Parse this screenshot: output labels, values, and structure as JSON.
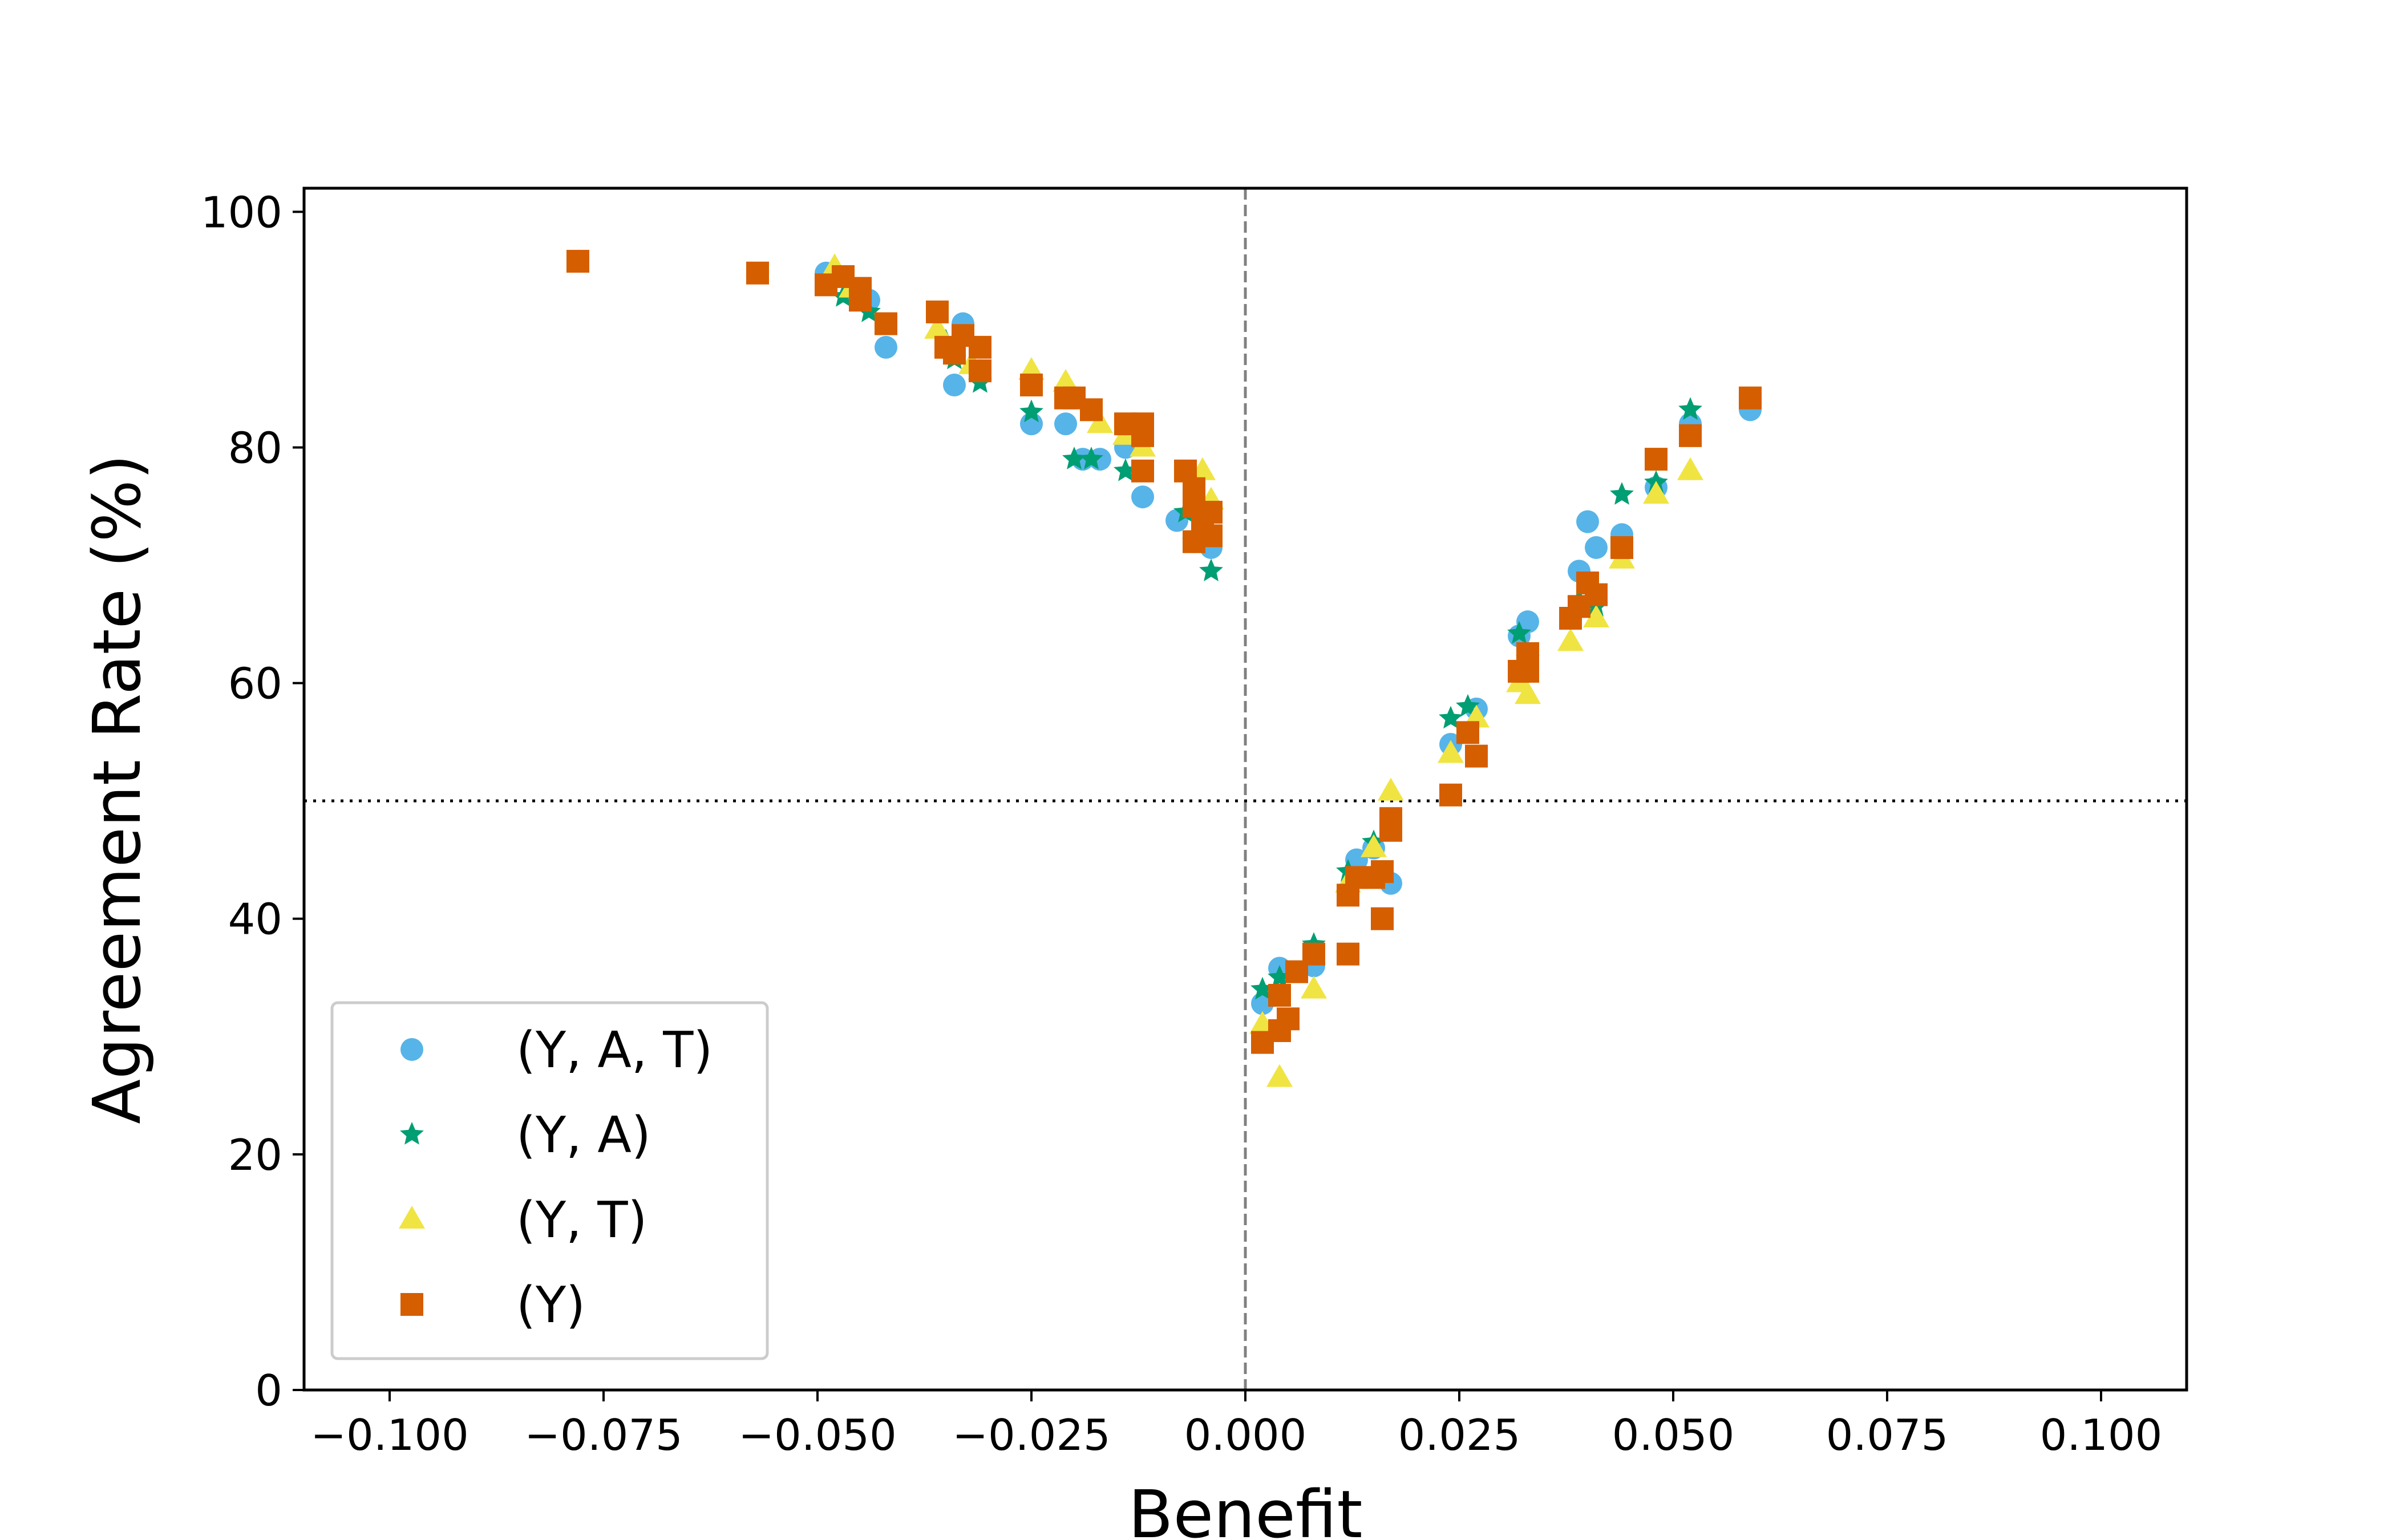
{
  "chart_data": {
    "type": "scatter",
    "title": "",
    "xlabel": "Benefit",
    "ylabel": "Agreement Rate (%)",
    "xlim": [
      -0.11,
      0.11
    ],
    "ylim": [
      0,
      102
    ],
    "xticks": [
      -0.1,
      -0.075,
      -0.05,
      -0.025,
      0.0,
      0.025,
      0.05,
      0.075,
      0.1
    ],
    "xtick_labels": [
      "−0.100",
      "−0.075",
      "−0.050",
      "−0.025",
      "0.000",
      "0.025",
      "0.050",
      "0.075",
      "0.100"
    ],
    "yticks": [
      0,
      20,
      40,
      60,
      80,
      100
    ],
    "ytick_labels": [
      "0",
      "20",
      "40",
      "60",
      "80",
      "100"
    ],
    "grid": false,
    "legend_position": "bottom-left",
    "reference_lines": {
      "vertical_x": 0.0,
      "vertical_style": "dashed",
      "horizontal_y": 50,
      "horizontal_style": "dotted"
    },
    "series": [
      {
        "name": "(Y, A, T)",
        "marker": "circle",
        "color": "#56B4E9",
        "points": [
          [
            -0.049,
            94.8
          ],
          [
            -0.044,
            92.5
          ],
          [
            -0.042,
            88.5
          ],
          [
            -0.034,
            85.3
          ],
          [
            -0.033,
            90.5
          ],
          [
            -0.031,
            86.5
          ],
          [
            -0.025,
            82.0
          ],
          [
            -0.021,
            82.0
          ],
          [
            -0.019,
            79.0
          ],
          [
            -0.017,
            79.0
          ],
          [
            -0.014,
            80.0
          ],
          [
            -0.012,
            75.8
          ],
          [
            -0.008,
            73.8
          ],
          [
            -0.006,
            72.0
          ],
          [
            -0.004,
            71.5
          ],
          [
            0.002,
            32.8
          ],
          [
            0.004,
            35.8
          ],
          [
            0.008,
            36.0
          ],
          [
            0.013,
            45.0
          ],
          [
            0.015,
            46.0
          ],
          [
            0.017,
            43.0
          ],
          [
            0.024,
            54.8
          ],
          [
            0.027,
            57.8
          ],
          [
            0.032,
            64.0
          ],
          [
            0.033,
            65.2
          ],
          [
            0.039,
            69.5
          ],
          [
            0.04,
            73.7
          ],
          [
            0.041,
            71.5
          ],
          [
            0.044,
            72.6
          ],
          [
            0.048,
            76.6
          ],
          [
            0.052,
            82.0
          ],
          [
            0.059,
            83.2
          ]
        ]
      },
      {
        "name": "(Y, A)",
        "marker": "star",
        "color": "#009E73",
        "points": [
          [
            -0.047,
            92.8
          ],
          [
            -0.044,
            91.5
          ],
          [
            -0.035,
            89.0
          ],
          [
            -0.034,
            87.5
          ],
          [
            -0.031,
            85.5
          ],
          [
            -0.025,
            83.0
          ],
          [
            -0.02,
            79.0
          ],
          [
            -0.018,
            79.0
          ],
          [
            -0.014,
            78.0
          ],
          [
            -0.007,
            74.5
          ],
          [
            -0.006,
            72.0
          ],
          [
            -0.004,
            69.5
          ],
          [
            0.002,
            34.0
          ],
          [
            0.004,
            35.0
          ],
          [
            0.008,
            37.8
          ],
          [
            0.012,
            44.0
          ],
          [
            0.015,
            46.5
          ],
          [
            0.024,
            57.0
          ],
          [
            0.026,
            58.0
          ],
          [
            0.032,
            64.2
          ],
          [
            0.033,
            62.0
          ],
          [
            0.039,
            67.0
          ],
          [
            0.041,
            66.5
          ],
          [
            0.044,
            76.0
          ],
          [
            0.048,
            77.0
          ],
          [
            0.052,
            83.2
          ]
        ]
      },
      {
        "name": "(Y, T)",
        "marker": "triangle",
        "color": "#F0E442",
        "points": [
          [
            -0.048,
            95.3
          ],
          [
            -0.046,
            93.5
          ],
          [
            -0.036,
            90.0
          ],
          [
            -0.032,
            87.0
          ],
          [
            -0.025,
            86.5
          ],
          [
            -0.021,
            85.5
          ],
          [
            -0.017,
            82.0
          ],
          [
            -0.014,
            81.0
          ],
          [
            -0.012,
            80.0
          ],
          [
            -0.005,
            78.0
          ],
          [
            -0.004,
            75.5
          ],
          [
            0.002,
            31.0
          ],
          [
            0.004,
            26.5
          ],
          [
            0.008,
            34.0
          ],
          [
            0.012,
            43.0
          ],
          [
            0.015,
            46.0
          ],
          [
            0.017,
            50.8
          ],
          [
            0.024,
            54.0
          ],
          [
            0.027,
            57.0
          ],
          [
            0.032,
            60.0
          ],
          [
            0.033,
            59.0
          ],
          [
            0.038,
            63.5
          ],
          [
            0.041,
            65.5
          ],
          [
            0.044,
            70.5
          ],
          [
            0.048,
            76.0
          ],
          [
            0.052,
            78.0
          ]
        ]
      },
      {
        "name": "(Y)",
        "marker": "square",
        "color": "#D55E00",
        "points": [
          [
            -0.078,
            95.8
          ],
          [
            -0.057,
            94.8
          ],
          [
            -0.049,
            93.8
          ],
          [
            -0.047,
            94.5
          ],
          [
            -0.045,
            93.5
          ],
          [
            -0.045,
            92.5
          ],
          [
            -0.042,
            90.5
          ],
          [
            -0.036,
            91.5
          ],
          [
            -0.035,
            88.5
          ],
          [
            -0.034,
            88.0
          ],
          [
            -0.033,
            89.5
          ],
          [
            -0.031,
            88.5
          ],
          [
            -0.031,
            86.5
          ],
          [
            -0.025,
            85.3
          ],
          [
            -0.021,
            84.2
          ],
          [
            -0.02,
            84.2
          ],
          [
            -0.018,
            83.2
          ],
          [
            -0.014,
            82.0
          ],
          [
            -0.012,
            82.0
          ],
          [
            -0.012,
            81.0
          ],
          [
            -0.012,
            78.0
          ],
          [
            -0.007,
            78.0
          ],
          [
            -0.006,
            76.5
          ],
          [
            -0.006,
            75.0
          ],
          [
            -0.005,
            73.5
          ],
          [
            -0.004,
            74.5
          ],
          [
            -0.004,
            72.5
          ],
          [
            -0.006,
            72.0
          ],
          [
            0.002,
            29.5
          ],
          [
            0.004,
            30.5
          ],
          [
            0.004,
            33.5
          ],
          [
            0.005,
            31.5
          ],
          [
            0.006,
            35.5
          ],
          [
            0.008,
            37.0
          ],
          [
            0.012,
            37.0
          ],
          [
            0.012,
            42.0
          ],
          [
            0.013,
            43.5
          ],
          [
            0.015,
            43.5
          ],
          [
            0.016,
            40.0
          ],
          [
            0.016,
            44.0
          ],
          [
            0.017,
            47.5
          ],
          [
            0.017,
            48.5
          ],
          [
            0.024,
            50.5
          ],
          [
            0.026,
            55.8
          ],
          [
            0.027,
            53.8
          ],
          [
            0.032,
            61.0
          ],
          [
            0.033,
            61.0
          ],
          [
            0.033,
            62.5
          ],
          [
            0.038,
            65.5
          ],
          [
            0.039,
            66.5
          ],
          [
            0.04,
            68.5
          ],
          [
            0.041,
            67.5
          ],
          [
            0.044,
            71.5
          ],
          [
            0.048,
            79.0
          ],
          [
            0.052,
            81.0
          ],
          [
            0.059,
            84.2
          ]
        ]
      }
    ]
  }
}
